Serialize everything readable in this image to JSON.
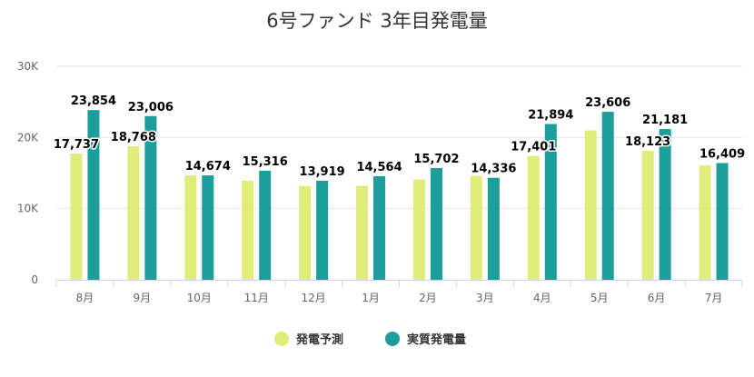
{
  "chart_data": {
    "type": "bar",
    "title": "6号ファンド 3年目発電量",
    "categories": [
      "8月",
      "9月",
      "10月",
      "11月",
      "12月",
      "1月",
      "2月",
      "3月",
      "4月",
      "5月",
      "6月",
      "7月"
    ],
    "series": [
      {
        "name": "発電予測",
        "color": "#e2ec7a",
        "values": [
          17737,
          18768,
          14674,
          13919,
          13200,
          13200,
          14100,
          14600,
          17401,
          21000,
          18123,
          16100
        ],
        "labels": [
          "17,737",
          "18,768",
          "",
          "",
          "",
          "",
          "",
          "",
          "17,401",
          "",
          "18,123",
          ""
        ]
      },
      {
        "name": "実質発電量",
        "color": "#1b9e9c",
        "values": [
          23854,
          23006,
          14674,
          15316,
          13919,
          14564,
          15702,
          14336,
          21894,
          23606,
          21181,
          16409
        ],
        "labels": [
          "23,854",
          "23,006",
          "14,674",
          "15,316",
          "13,919",
          "14,564",
          "15,702",
          "14,336",
          "21,894",
          "23,606",
          "21,181",
          "16,409"
        ]
      }
    ],
    "yaxis": {
      "min": 0,
      "max": 30000,
      "ticks": [
        0,
        10000,
        20000,
        30000
      ],
      "tick_labels": [
        "0",
        "10K",
        "20K",
        "30K"
      ]
    },
    "grid": true,
    "legend": "bottom-center"
  }
}
